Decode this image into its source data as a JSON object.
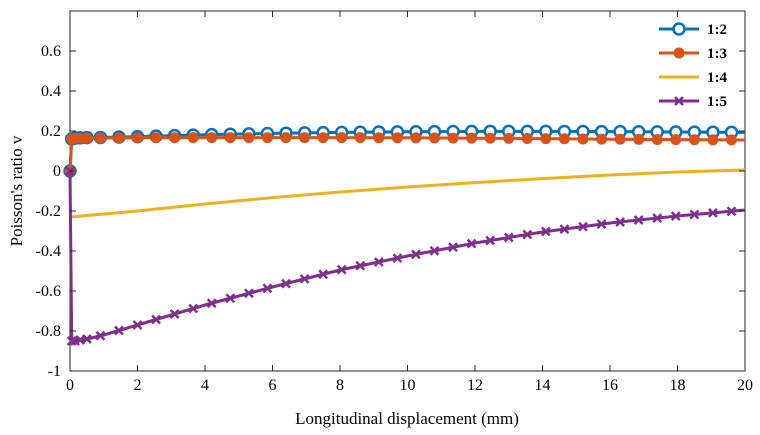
{
  "chart_data": {
    "type": "line",
    "xlabel": "Longitudinal displacement  (mm)",
    "ylabel": "Poisson's ratio v",
    "xlim": [
      0,
      20
    ],
    "ylim": [
      -1,
      0.8
    ],
    "xticks": [
      0,
      2,
      4,
      6,
      8,
      10,
      12,
      14,
      16,
      18,
      20
    ],
    "yticks": [
      -1,
      -0.8,
      -0.6,
      -0.4,
      -0.2,
      0,
      0.2,
      0.4,
      0.6
    ],
    "grid": false,
    "legend_position": "top-right",
    "series": [
      {
        "name": "1:2",
        "color": "#0072BD",
        "marker": "circle",
        "x": [
          0,
          0.05,
          0.15,
          0.3,
          0.5,
          1,
          2,
          4,
          6,
          8,
          10,
          12,
          14,
          16,
          18,
          20
        ],
        "y": [
          0,
          0.16,
          0.165,
          0.166,
          0.167,
          0.168,
          0.172,
          0.181,
          0.188,
          0.193,
          0.196,
          0.198,
          0.198,
          0.197,
          0.195,
          0.193
        ]
      },
      {
        "name": "1:3",
        "color": "#D95319",
        "marker": "dot",
        "x": [
          0,
          0.05,
          0.15,
          0.3,
          0.5,
          1,
          2,
          4,
          6,
          8,
          10,
          12,
          14,
          16,
          18,
          20
        ],
        "y": [
          0,
          0.16,
          0.163,
          0.164,
          0.164,
          0.165,
          0.166,
          0.167,
          0.167,
          0.167,
          0.166,
          0.164,
          0.162,
          0.159,
          0.157,
          0.155
        ]
      },
      {
        "name": "1:4",
        "color": "#EDB120",
        "marker": "none",
        "x": [
          0,
          2,
          4,
          6,
          8,
          10,
          12,
          14,
          16,
          18,
          20
        ],
        "y": [
          -0.23,
          -0.2,
          -0.165,
          -0.133,
          -0.105,
          -0.08,
          -0.058,
          -0.038,
          -0.02,
          -0.005,
          0.005
        ]
      },
      {
        "name": "1:5",
        "color": "#7E2F8E",
        "marker": "x",
        "x": [
          0,
          0.05,
          0.15,
          0.3,
          0.5,
          1,
          2,
          4,
          6,
          8,
          10,
          12,
          14,
          16,
          18,
          20
        ],
        "y": [
          0,
          -0.85,
          -0.85,
          -0.845,
          -0.84,
          -0.82,
          -0.77,
          -0.67,
          -0.58,
          -0.495,
          -0.425,
          -0.36,
          -0.305,
          -0.26,
          -0.225,
          -0.195
        ]
      }
    ]
  }
}
